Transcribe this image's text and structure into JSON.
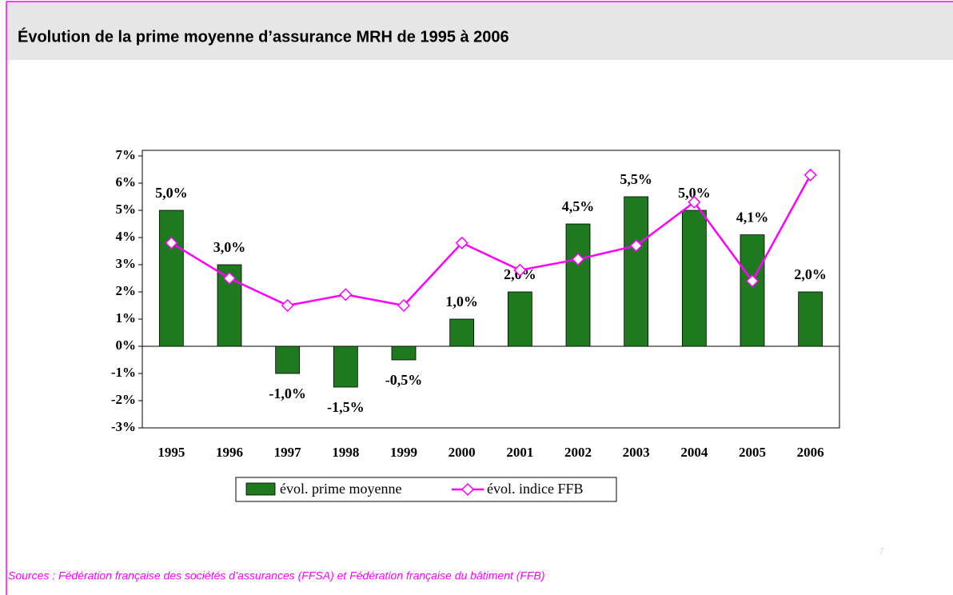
{
  "chart_data": {
    "type": "bar",
    "title": "Évolution de la prime moyenne d’assurance MRH de 1995 à 2006",
    "categories": [
      "1995",
      "1996",
      "1997",
      "1998",
      "1999",
      "2000",
      "2001",
      "2002",
      "2003",
      "2004",
      "2005",
      "2006"
    ],
    "series": [
      {
        "name": "évol. prime moyenne",
        "type": "bar",
        "color": "#1f7a1f",
        "values": [
          5.0,
          3.0,
          -1.0,
          -1.5,
          -0.5,
          1.0,
          2.0,
          4.5,
          5.5,
          5.0,
          4.1,
          2.0
        ],
        "value_labels": [
          "5,0%",
          "3,0%",
          "-1,0%",
          "-1,5%",
          "-0,5%",
          "1,0%",
          "2,0%",
          "4,5%",
          "5,5%",
          "5,0%",
          "4,1%",
          "2,0%"
        ]
      },
      {
        "name": "évol. indice FFB",
        "type": "line",
        "color": "#ff00ff",
        "values": [
          3.8,
          2.5,
          1.5,
          1.9,
          1.5,
          3.8,
          2.8,
          3.2,
          3.7,
          5.3,
          2.4,
          6.3
        ]
      }
    ],
    "ylim": [
      -3,
      7
    ],
    "yticks": [
      {
        "value": -3,
        "label": "-3%"
      },
      {
        "value": -2,
        "label": "-2%"
      },
      {
        "value": -1,
        "label": "-1%"
      },
      {
        "value": 0,
        "label": "0%"
      },
      {
        "value": 1,
        "label": "1%"
      },
      {
        "value": 2,
        "label": "2%"
      },
      {
        "value": 3,
        "label": "3%"
      },
      {
        "value": 4,
        "label": "4%"
      },
      {
        "value": 5,
        "label": "5%"
      },
      {
        "value": 6,
        "label": "6%"
      },
      {
        "value": 7,
        "label": "7%"
      }
    ],
    "legend": "bottom",
    "source": "Sources : Fédération française des sociétés d’assurances (FFSA) et Fédération française du bâtiment (FFB)"
  },
  "page_number": "7"
}
